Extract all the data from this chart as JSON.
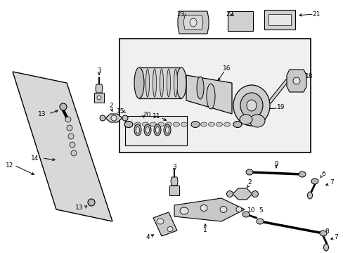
{
  "bg_color": "#ffffff",
  "line_color": "#000000",
  "fill_light": "#e8e8e8",
  "fill_mid": "#cccccc",
  "fill_dark": "#aaaaaa",
  "figsize": [
    4.89,
    3.6
  ],
  "dpi": 100
}
